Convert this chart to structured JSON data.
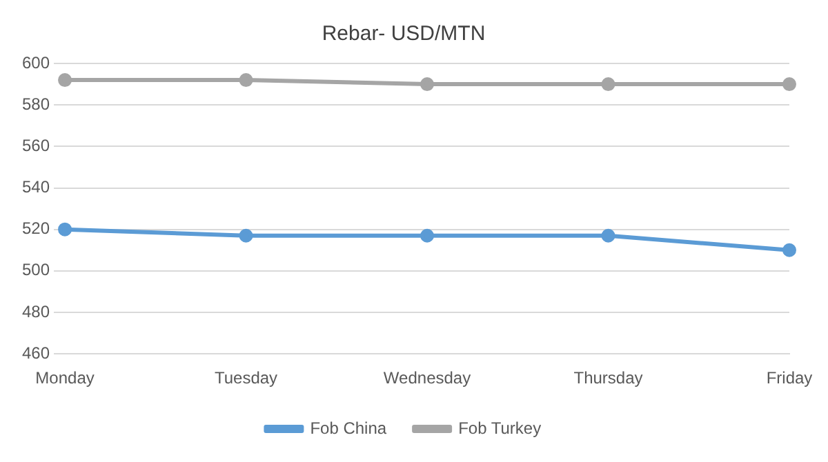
{
  "chart_data": {
    "type": "line",
    "title": "Rebar- USD/MTN",
    "categories": [
      "Monday",
      "Tuesday",
      "Wednesday",
      "Thursday",
      "Friday"
    ],
    "series": [
      {
        "name": "Fob China",
        "color": "#5b9bd5",
        "values": [
          520,
          517,
          517,
          517,
          510
        ]
      },
      {
        "name": "Fob Turkey",
        "color": "#a5a5a5",
        "values": [
          592,
          592,
          590,
          590,
          590
        ]
      }
    ],
    "ylim": [
      460,
      600
    ],
    "yticks": [
      460,
      480,
      500,
      520,
      540,
      560,
      580,
      600
    ],
    "grid": "y",
    "legend": "bottom",
    "marker": "circle",
    "line_style": "solid"
  }
}
